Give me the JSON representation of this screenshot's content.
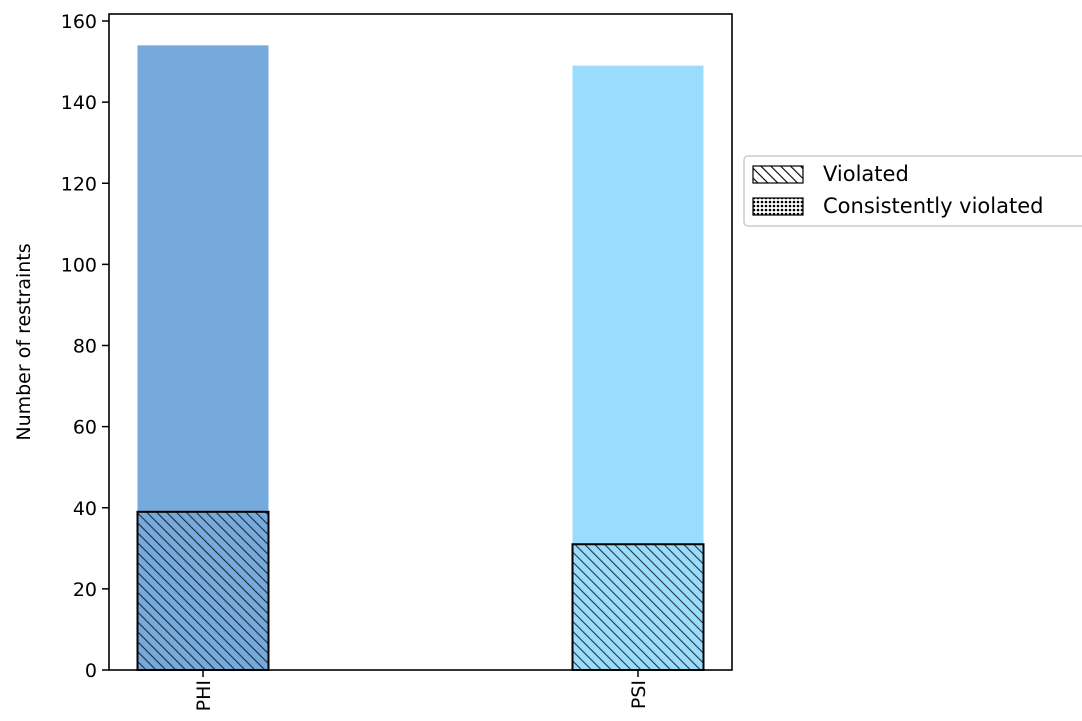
{
  "chart_data": {
    "type": "bar",
    "categories": [
      "PHI",
      "PSI"
    ],
    "series": [
      {
        "name": "",
        "values": [
          154,
          149
        ],
        "colors": [
          "#77aadc",
          "#99dcfc"
        ]
      },
      {
        "name": "Violated",
        "values": [
          39,
          31
        ],
        "pattern": "diagonal-hatch"
      },
      {
        "name": "Consistently violated",
        "values": [
          0,
          0
        ],
        "pattern": "dots"
      }
    ],
    "ylabel": "Number of restraints",
    "xlabel": "",
    "ylim": [
      0,
      160
    ],
    "yticks": [
      0,
      20,
      40,
      60,
      80,
      100,
      120,
      140,
      160
    ],
    "grid": false,
    "legend": {
      "placement": "outside-right",
      "entries": [
        "Violated",
        "Consistently violated"
      ]
    }
  }
}
